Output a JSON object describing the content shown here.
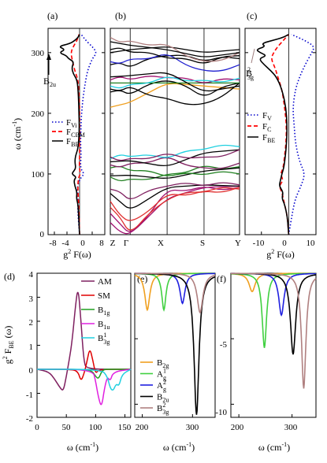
{
  "figure": {
    "width": 415,
    "height": 588
  },
  "chart_data": [
    {
      "id": "a",
      "panel_label": "(a)",
      "type": "line",
      "orientation": "horizontal-density",
      "xlim": [
        -10,
        8
      ],
      "ylim": [
        0,
        340
      ],
      "xticks": [
        -8,
        -4,
        0,
        4,
        8
      ],
      "yticks": [
        0,
        100,
        200,
        300
      ],
      "xlabel": "g² F(ω)",
      "ylabel": "ω (cm⁻¹)",
      "annotations": [
        "B2u"
      ],
      "series": [
        {
          "name": "F_Vi",
          "style": "dotted",
          "color": "#0000cc",
          "w": [
            0,
            40,
            60,
            80,
            95,
            100,
            110,
            130,
            150,
            170,
            190,
            210,
            230,
            250,
            270,
            290,
            300,
            310,
            320,
            330
          ],
          "v": [
            0,
            -0.6,
            -0.4,
            -0.8,
            0.5,
            1.5,
            0.2,
            0.5,
            0.3,
            0.4,
            0.5,
            0.8,
            1.2,
            1.8,
            2.5,
            4.0,
            5.5,
            4.0,
            2.0,
            0.5
          ]
        },
        {
          "name": "F_CBM",
          "style": "dashed",
          "color": "#ff0000",
          "w": [
            0,
            40,
            60,
            80,
            95,
            100,
            110,
            130,
            150,
            170,
            190,
            210,
            230,
            250,
            260,
            270,
            285,
            300,
            310,
            320,
            330
          ],
          "v": [
            0,
            -0.2,
            -0.4,
            -0.6,
            -0.3,
            0.3,
            -0.1,
            0,
            0,
            0,
            0,
            0,
            -0.2,
            -0.4,
            -0.8,
            -1.5,
            -2.2,
            -2.8,
            -2.0,
            -0.8,
            -0.2
          ]
        },
        {
          "name": "F_BE",
          "style": "solid",
          "color": "#000000",
          "w": [
            0,
            30,
            50,
            60,
            70,
            80,
            90,
            95,
            100,
            105,
            110,
            120,
            130,
            140,
            150,
            160,
            180,
            200,
            220,
            240,
            255,
            265,
            275,
            285,
            290,
            295,
            300,
            305,
            310,
            315,
            320,
            325,
            330
          ],
          "v": [
            0,
            -0.3,
            -0.5,
            -1.0,
            -0.8,
            -1.5,
            -1.8,
            -1.0,
            -2.5,
            -1.8,
            -1.2,
            -1.5,
            -1.3,
            -0.6,
            -0.4,
            -0.2,
            -0.1,
            -0.2,
            -0.3,
            -0.5,
            -0.8,
            -2.0,
            -2.5,
            -1.8,
            -3.5,
            -4.2,
            -6.5,
            -4.5,
            -6.8,
            -3.0,
            -1.5,
            -0.5,
            0
          ]
        }
      ]
    },
    {
      "id": "b",
      "panel_label": "(b)",
      "type": "line",
      "orientation": "band-structure",
      "ylim": [
        0,
        340
      ],
      "yticks": [
        0,
        100,
        200,
        300
      ],
      "kpoint_labels": [
        "Z",
        "Γ",
        "X",
        "S",
        "Y"
      ],
      "kpoint_positions": [
        0,
        0.7,
        2.0,
        3.3,
        4.55
      ],
      "note": "phonon branches along Z-Γ-X-S-Y; coloured branch groups",
      "branch_colors": [
        "#000000",
        "#7f2060",
        "#e03030",
        "#208020",
        "#2020d0",
        "#20d0e0",
        "#f0a020",
        "#b08080",
        "#a01070"
      ]
    },
    {
      "id": "c",
      "panel_label": "(c)",
      "type": "line",
      "orientation": "horizontal-density",
      "xlim": [
        -16,
        10
      ],
      "ylim": [
        0,
        340
      ],
      "xticks": [
        -10,
        0,
        10
      ],
      "yticks": [
        0,
        100,
        200,
        300
      ],
      "xlabel": "g² F(ω)",
      "annotations": [
        "B²3g"
      ],
      "series": [
        {
          "name": "F_V",
          "style": "dotted",
          "color": "#0000cc",
          "w": [
            0,
            40,
            60,
            80,
            100,
            120,
            150,
            180,
            210,
            240,
            260,
            280,
            300,
            310,
            320,
            330
          ],
          "v": [
            0,
            1.5,
            2.5,
            4.5,
            6.0,
            4.0,
            2.5,
            2.0,
            1.5,
            2.5,
            4.0,
            6.0,
            8.5,
            9.5,
            6.0,
            1.0
          ]
        },
        {
          "name": "F_C",
          "style": "dashed",
          "color": "#ff0000",
          "w": [
            0,
            30,
            50,
            60,
            70,
            80,
            90,
            100,
            110,
            130,
            150,
            180,
            210,
            240,
            260,
            275,
            290,
            300,
            310,
            320,
            330
          ],
          "v": [
            0,
            -0.5,
            -1.5,
            -2.0,
            -2.5,
            -3.5,
            -2.0,
            -3.0,
            -2.0,
            -1.5,
            -1.0,
            -0.8,
            -1.5,
            -2.5,
            -4.0,
            -5.0,
            -6.5,
            -5.5,
            -4.0,
            -2.0,
            0
          ]
        },
        {
          "name": "F_BE",
          "style": "solid",
          "color": "#000000",
          "w": [
            0,
            30,
            50,
            60,
            70,
            80,
            90,
            100,
            110,
            130,
            150,
            180,
            210,
            240,
            260,
            270,
            280,
            290,
            295,
            300,
            305,
            310,
            315,
            320,
            325,
            330
          ],
          "v": [
            0,
            -0.5,
            -1.5,
            -2.5,
            -2.0,
            -3.5,
            -3.0,
            -2.5,
            -1.8,
            -1.2,
            -0.8,
            -0.6,
            -1.0,
            -2.5,
            -4.5,
            -6.5,
            -9.0,
            -11.0,
            -8.0,
            -10.5,
            -12.0,
            -8.5,
            -10.0,
            -6.0,
            -2.0,
            0
          ]
        }
      ]
    },
    {
      "id": "d",
      "panel_label": "(d)",
      "type": "line",
      "xlim": [
        0,
        160
      ],
      "ylim": [
        -2,
        4
      ],
      "xticks": [
        0,
        50,
        100,
        150
      ],
      "yticks": [
        -2,
        -1,
        0,
        1,
        2,
        3,
        4
      ],
      "xlabel": "ω (cm⁻¹)",
      "ylabel": "g² F_BE (ω)",
      "legend": [
        "AM",
        "SM",
        "B1g",
        "B1u",
        "B¹3g"
      ],
      "series": [
        {
          "name": "AM",
          "color": "#7f2060",
          "x": [
            0,
            20,
            30,
            40,
            45,
            50,
            55,
            60,
            65,
            70,
            75,
            80,
            85,
            160
          ],
          "y": [
            0,
            -0.1,
            -0.4,
            -0.8,
            -0.9,
            -0.3,
            0.4,
            1.2,
            2.5,
            3.5,
            2.0,
            0.3,
            0,
            0
          ]
        },
        {
          "name": "SM",
          "color": "#e00000",
          "x": [
            0,
            60,
            70,
            75,
            80,
            85,
            90,
            95,
            100,
            105,
            160
          ],
          "y": [
            0,
            0,
            -0.1,
            -0.5,
            -0.2,
            0.3,
            0.9,
            0.4,
            -0.2,
            0,
            0
          ]
        },
        {
          "name": "B1g",
          "color": "#20a020",
          "x": [
            0,
            85,
            95,
            100,
            105,
            110,
            115,
            120,
            160
          ],
          "y": [
            0,
            0,
            -0.1,
            -0.3,
            -0.4,
            -0.1,
            0,
            0,
            0
          ]
        },
        {
          "name": "B1u",
          "color": "#e020e0",
          "x": [
            0,
            95,
            100,
            105,
            110,
            115,
            120,
            125,
            130,
            160
          ],
          "y": [
            0,
            0,
            -0.5,
            -1.2,
            -1.6,
            -0.8,
            -0.3,
            -0.5,
            -0.1,
            0
          ]
        },
        {
          "name": "B¹3g",
          "color": "#20d0e0",
          "x": [
            0,
            110,
            120,
            125,
            130,
            135,
            140,
            145,
            160
          ],
          "y": [
            0,
            0,
            -0.3,
            -0.8,
            -0.9,
            -0.6,
            -0.7,
            -0.2,
            0
          ]
        }
      ]
    },
    {
      "id": "e",
      "panel_label": "(e)",
      "type": "line",
      "xlim": [
        185,
        345
      ],
      "ylim": [
        -11,
        0
      ],
      "xticks": [
        200,
        300
      ],
      "yticks": [
        -10,
        -5
      ],
      "xlabel": "ω (cm⁻¹)",
      "legend": [
        "B2g",
        "A1g",
        "A2g",
        "B2u",
        "B²3g"
      ],
      "series": [
        {
          "name": "B2g",
          "color": "#f0a020",
          "center": 210,
          "depth": -2.8,
          "width": 6
        },
        {
          "name": "A1g",
          "color": "#40d040",
          "center": 243,
          "depth": -2.8,
          "width": 5
        },
        {
          "name": "A2g",
          "color": "#2020e0",
          "center": 280,
          "depth": -2.3,
          "width": 6
        },
        {
          "name": "B2u",
          "color": "#000000",
          "center": 308,
          "depth": -10.8,
          "width": 6
        },
        {
          "name": "B²3g",
          "color": "#b08080",
          "center": 315,
          "depth": -3.0,
          "width": 7
        }
      ]
    },
    {
      "id": "f",
      "panel_label": "(f)",
      "type": "line",
      "xlim": [
        185,
        345
      ],
      "ylim": [
        -11,
        0
      ],
      "xticks": [
        200,
        300
      ],
      "yticks": [
        -10,
        -5
      ],
      "xlabel": "ω (cm⁻¹)",
      "series": [
        {
          "name": "B2g",
          "color": "#f0a020",
          "center": 225,
          "depth": -1.4,
          "width": 7
        },
        {
          "name": "A1g",
          "color": "#40d040",
          "center": 248,
          "depth": -5.7,
          "width": 5
        },
        {
          "name": "A2g",
          "color": "#2020e0",
          "center": 280,
          "depth": -3.2,
          "width": 6
        },
        {
          "name": "B2u",
          "color": "#000000",
          "center": 302,
          "depth": -6.2,
          "width": 6
        },
        {
          "name": "B²3g",
          "color": "#b08080",
          "center": 322,
          "depth": -8.8,
          "width": 5
        }
      ]
    }
  ],
  "labels": {
    "a": "(a)",
    "b": "(b)",
    "c": "(c)",
    "d": "(d)",
    "e": "(e)",
    "f": "(f)",
    "ylabel_omega": "ω (cm",
    "ylabel_omega_exp": "-1",
    "ylabel_omega_close": ")",
    "g2F": "g",
    "g2F_sup": "2",
    "g2F_rest": " F(ω)",
    "g2FBE_rest": " F",
    "g2FBE_sub": "BE",
    "g2FBE_tail": " (ω)",
    "xlabel_omega": "ω (cm",
    "xlabel_omega_exp": "-1",
    "xlabel_omega_close": ")",
    "a_leg": [
      "F",
      "F",
      "F"
    ],
    "a_leg_sub": [
      "Vi",
      "CBM",
      "BE"
    ],
    "c_leg": [
      "F",
      "F",
      "F"
    ],
    "c_leg_sub": [
      "V",
      "C",
      "BE"
    ],
    "d_leg": [
      "AM",
      "SM",
      "B",
      "B",
      "B"
    ],
    "d_leg_sub": [
      "",
      "",
      "1g",
      "1u",
      "3g"
    ],
    "d_leg_sup": [
      "",
      "",
      "",
      "",
      "1"
    ],
    "e_leg": [
      "B",
      "A",
      "A",
      "B",
      "B"
    ],
    "e_leg_sub": [
      "2g",
      "g",
      "g",
      "2u",
      "3g"
    ],
    "e_leg_sup": [
      "",
      "1",
      "2",
      "",
      "2"
    ],
    "ann_b2u": "B",
    "ann_b2u_sub": "2u",
    "ann_b3g": "B",
    "ann_b3g_sup": "2",
    "ann_b3g_sub": "3g",
    "kpts": [
      "Z",
      "Γ",
      "X",
      "S",
      "Y"
    ]
  }
}
